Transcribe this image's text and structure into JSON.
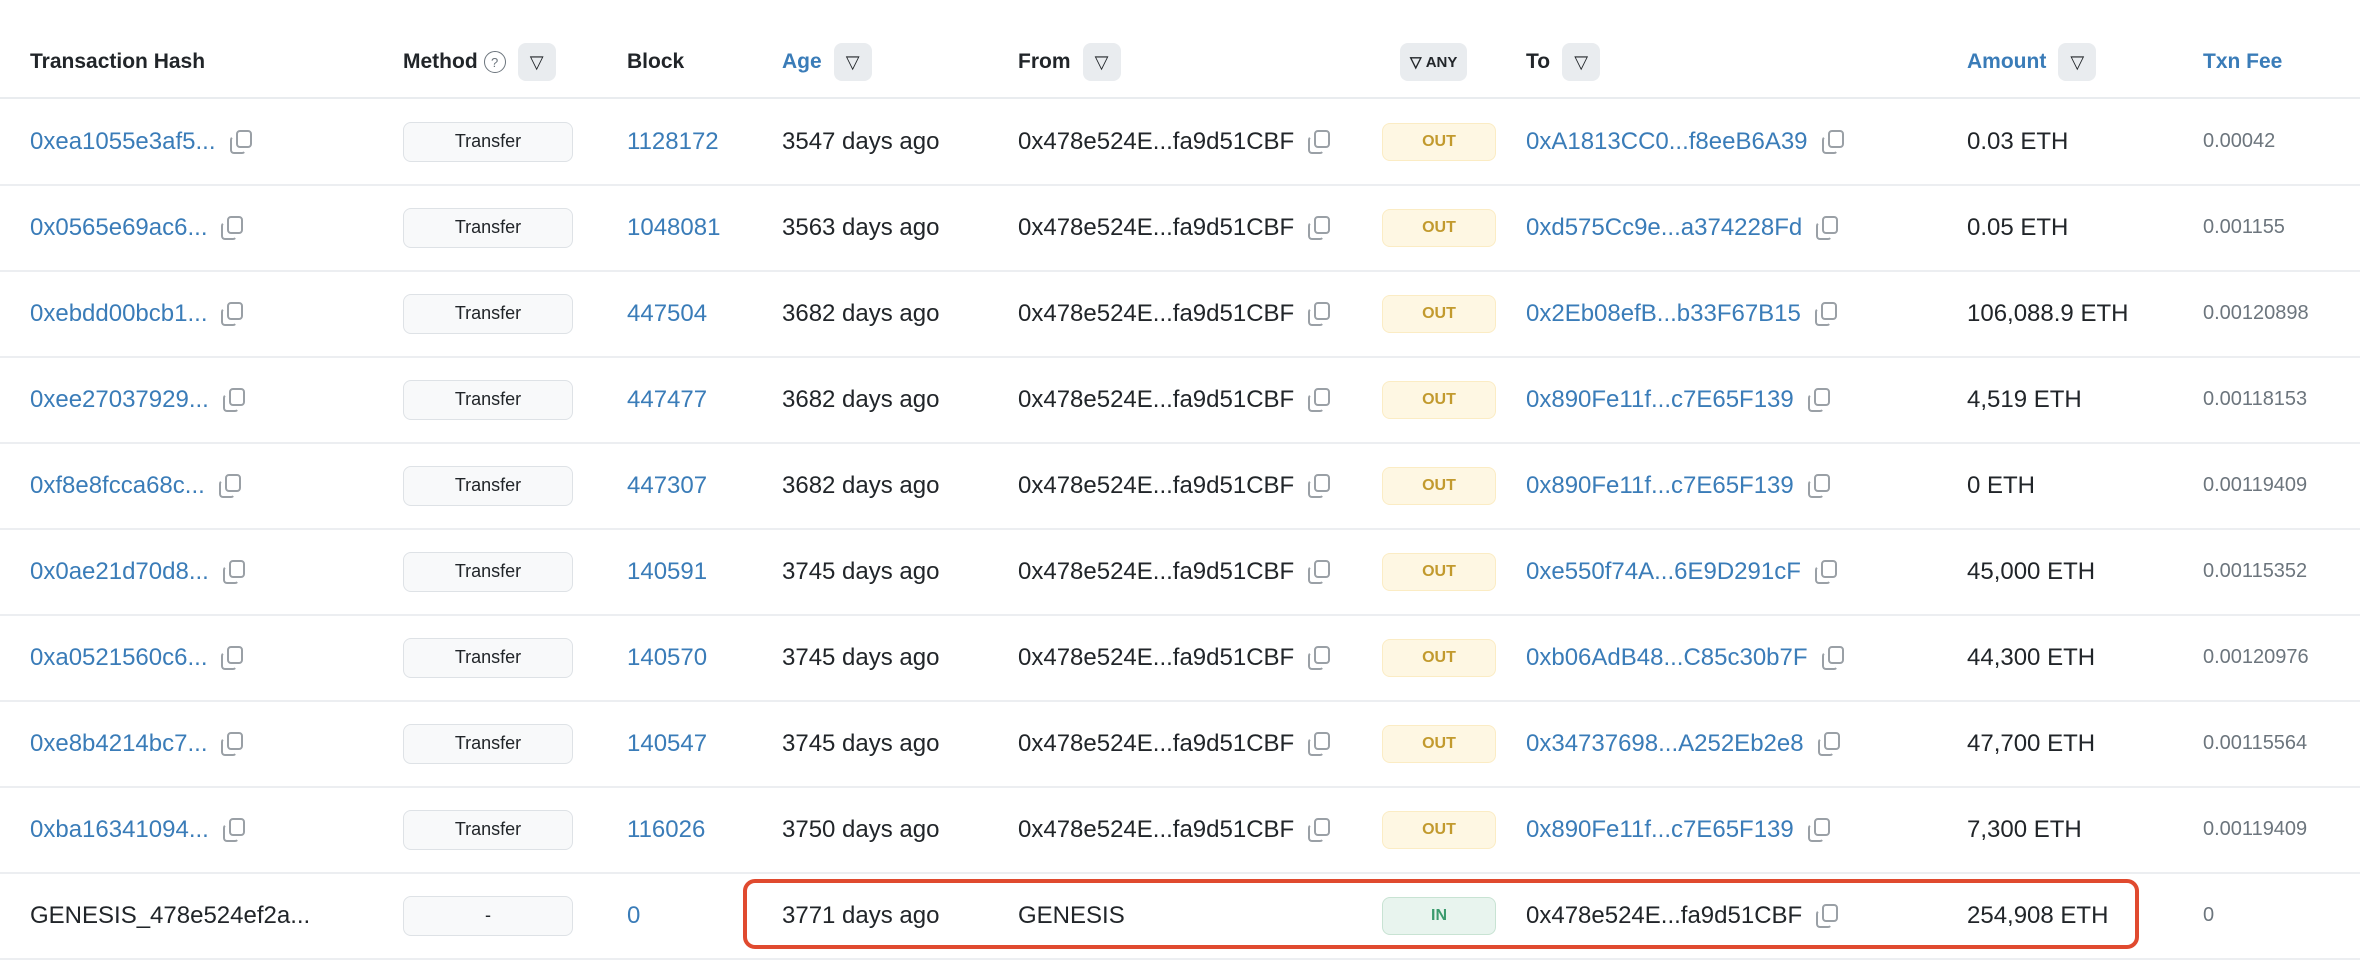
{
  "columns": {
    "hash": "Transaction Hash",
    "method": "Method",
    "block": "Block",
    "age": "Age",
    "from": "From",
    "direction_filter": "ANY",
    "to": "To",
    "amount": "Amount",
    "fee": "Txn Fee"
  },
  "colors": {
    "link": "#3a7cb8",
    "out_badge": "#c29a2e",
    "in_badge": "#3b9b6e",
    "highlight": "#e04a2f"
  },
  "rows": [
    {
      "hash": "0xea1055e3af5...",
      "method": "Transfer",
      "block": "1128172",
      "age": "3547 days ago",
      "from": "0x478e524E...fa9d51CBF",
      "dir": "OUT",
      "to": "0xA1813CC0...f8eeB6A39",
      "amount": "0.03 ETH",
      "fee": "0.00042"
    },
    {
      "hash": "0x0565e69ac6...",
      "method": "Transfer",
      "block": "1048081",
      "age": "3563 days ago",
      "from": "0x478e524E...fa9d51CBF",
      "dir": "OUT",
      "to": "0xd575Cc9e...a374228Fd",
      "amount": "0.05 ETH",
      "fee": "0.001155"
    },
    {
      "hash": "0xebdd00bcb1...",
      "method": "Transfer",
      "block": "447504",
      "age": "3682 days ago",
      "from": "0x478e524E...fa9d51CBF",
      "dir": "OUT",
      "to": "0x2Eb08efB...b33F67B15",
      "amount": "106,088.9 ETH",
      "fee": "0.00120898"
    },
    {
      "hash": "0xee27037929...",
      "method": "Transfer",
      "block": "447477",
      "age": "3682 days ago",
      "from": "0x478e524E...fa9d51CBF",
      "dir": "OUT",
      "to": "0x890Fe11f...c7E65F139",
      "amount": "4,519 ETH",
      "fee": "0.00118153"
    },
    {
      "hash": "0xf8e8fcca68c...",
      "method": "Transfer",
      "block": "447307",
      "age": "3682 days ago",
      "from": "0x478e524E...fa9d51CBF",
      "dir": "OUT",
      "to": "0x890Fe11f...c7E65F139",
      "amount": "0 ETH",
      "fee": "0.00119409"
    },
    {
      "hash": "0x0ae21d70d8...",
      "method": "Transfer",
      "block": "140591",
      "age": "3745 days ago",
      "from": "0x478e524E...fa9d51CBF",
      "dir": "OUT",
      "to": "0xe550f74A...6E9D291cF",
      "amount": "45,000 ETH",
      "fee": "0.00115352"
    },
    {
      "hash": "0xa0521560c6...",
      "method": "Transfer",
      "block": "140570",
      "age": "3745 days ago",
      "from": "0x478e524E...fa9d51CBF",
      "dir": "OUT",
      "to": "0xb06AdB48...C85c30b7F",
      "amount": "44,300 ETH",
      "fee": "0.00120976"
    },
    {
      "hash": "0xe8b4214bc7...",
      "method": "Transfer",
      "block": "140547",
      "age": "3745 days ago",
      "from": "0x478e524E...fa9d51CBF",
      "dir": "OUT",
      "to": "0x34737698...A252Eb2e8",
      "amount": "47,700 ETH",
      "fee": "0.00115564"
    },
    {
      "hash": "0xba16341094...",
      "method": "Transfer",
      "block": "116026",
      "age": "3750 days ago",
      "from": "0x478e524E...fa9d51CBF",
      "dir": "OUT",
      "to": "0x890Fe11f...c7E65F139",
      "amount": "7,300 ETH",
      "fee": "0.00119409"
    },
    {
      "hash": "GENESIS_478e524ef2a...",
      "method": "-",
      "block": "0",
      "age": "3771 days ago",
      "from": "GENESIS",
      "dir": "IN",
      "to": "0x478e524E...fa9d51CBF",
      "amount": "254,908 ETH",
      "fee": "0",
      "genesis": true
    }
  ]
}
